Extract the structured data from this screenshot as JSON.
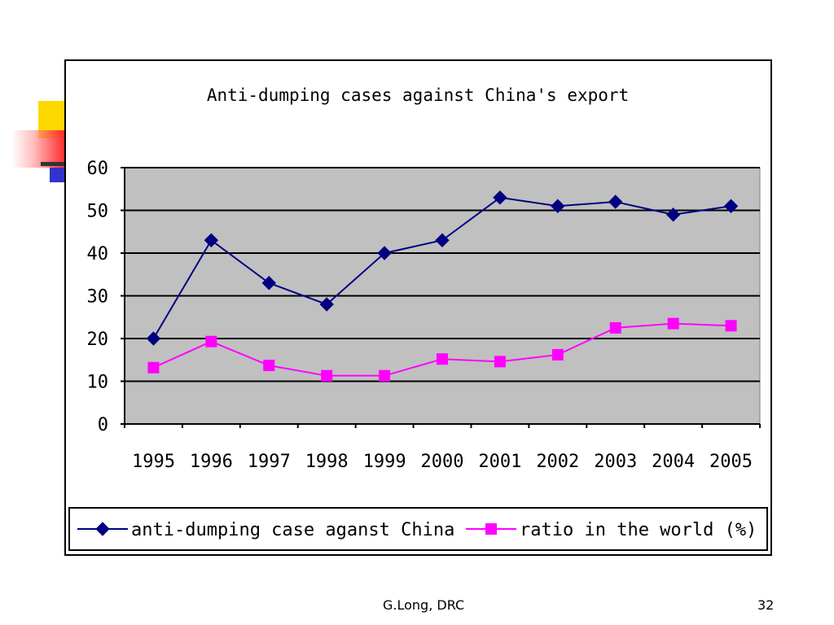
{
  "slide": {
    "footer_author": "G.Long, DRC",
    "page_number": "32"
  },
  "chart_data": {
    "type": "line",
    "title": "Anti-dumping cases against China's export",
    "xlabel": "",
    "ylabel": "",
    "categories": [
      "1995",
      "1996",
      "1997",
      "1998",
      "1999",
      "2000",
      "2001",
      "2002",
      "2003",
      "2004",
      "2005"
    ],
    "ylim": [
      0,
      60
    ],
    "yticks": [
      "0",
      "10",
      "20",
      "30",
      "40",
      "50",
      "60"
    ],
    "grid": true,
    "legend_position": "bottom",
    "plot_background": "#c0c0c0",
    "series": [
      {
        "name": "anti-dumping case aganst China",
        "marker": "diamond",
        "color": "#000080",
        "values": [
          20,
          43,
          33,
          28,
          40,
          43,
          53,
          51,
          52,
          49,
          51
        ]
      },
      {
        "name": "ratio in the world (%)",
        "marker": "square",
        "color": "#ff00ff",
        "values": [
          13.2,
          19.3,
          13.7,
          11.3,
          11.3,
          15.2,
          14.6,
          16.2,
          22.5,
          23.5,
          23
        ]
      }
    ]
  }
}
